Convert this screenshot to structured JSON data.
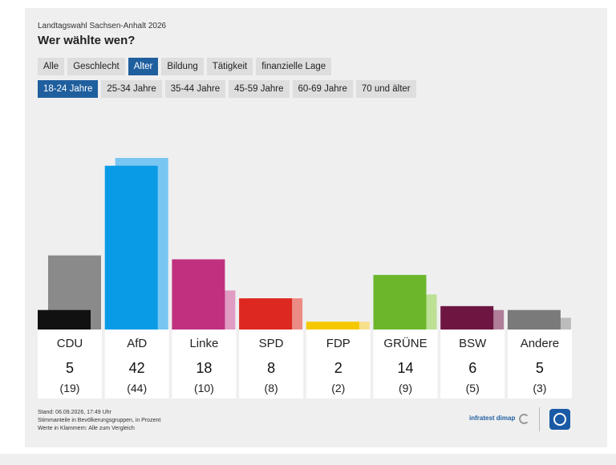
{
  "header": {
    "supertitle": "Landtagswahl Sachsen-Anhalt 2026",
    "title": "Wer wählte wen?"
  },
  "tabs_primary": [
    {
      "label": "Alle",
      "active": false
    },
    {
      "label": "Geschlecht",
      "active": false
    },
    {
      "label": "Alter",
      "active": true
    },
    {
      "label": "Bildung",
      "active": false
    },
    {
      "label": "Tätigkeit",
      "active": false
    },
    {
      "label": "finanzielle Lage",
      "active": false
    }
  ],
  "tabs_secondary": [
    {
      "label": "18-24 Jahre",
      "active": true
    },
    {
      "label": "25-34 Jahre",
      "active": false
    },
    {
      "label": "35-44 Jahre",
      "active": false
    },
    {
      "label": "45-59 Jahre",
      "active": false
    },
    {
      "label": "60-69 Jahre",
      "active": false
    },
    {
      "label": "70 und älter",
      "active": false
    }
  ],
  "chart_data": {
    "type": "bar",
    "categories": [
      "CDU",
      "AfD",
      "Linke",
      "SPD",
      "FDP",
      "GRÜNE",
      "BSW",
      "Andere"
    ],
    "series": [
      {
        "values": [
          5,
          42,
          18,
          8,
          2,
          14,
          6,
          5
        ]
      },
      {
        "values": [
          19,
          44,
          10,
          8,
          2,
          9,
          5,
          3
        ]
      }
    ],
    "value_labels": [
      "5",
      "42",
      "18",
      "8",
      "2",
      "14",
      "6",
      "5"
    ],
    "comparison_labels": [
      "(19)",
      "(44)",
      "(10)",
      "(8)",
      "(2)",
      "(9)",
      "(5)",
      "(3)"
    ],
    "colors": [
      "#111111",
      "#0a9be6",
      "#c0307f",
      "#dc2820",
      "#f5c800",
      "#6cb62c",
      "#6e1642",
      "#7a7a7a"
    ],
    "comparison_colors": [
      "#8a8a8a",
      "#79c6f2",
      "#e09cc2",
      "#ec8a86",
      "#f7e08a",
      "#bce094",
      "#b07e98",
      "#bcbcbc"
    ],
    "ylim": [
      0,
      44
    ]
  },
  "footer": {
    "line1": "Stand: 06.09.2026, 17:49 Uhr",
    "line2": "Stimmanteile in Bevölkerungsgruppen, in Prozent",
    "line3": "Werte in Klammern: Alle zum Vergleich",
    "source": "infratest dimap"
  }
}
